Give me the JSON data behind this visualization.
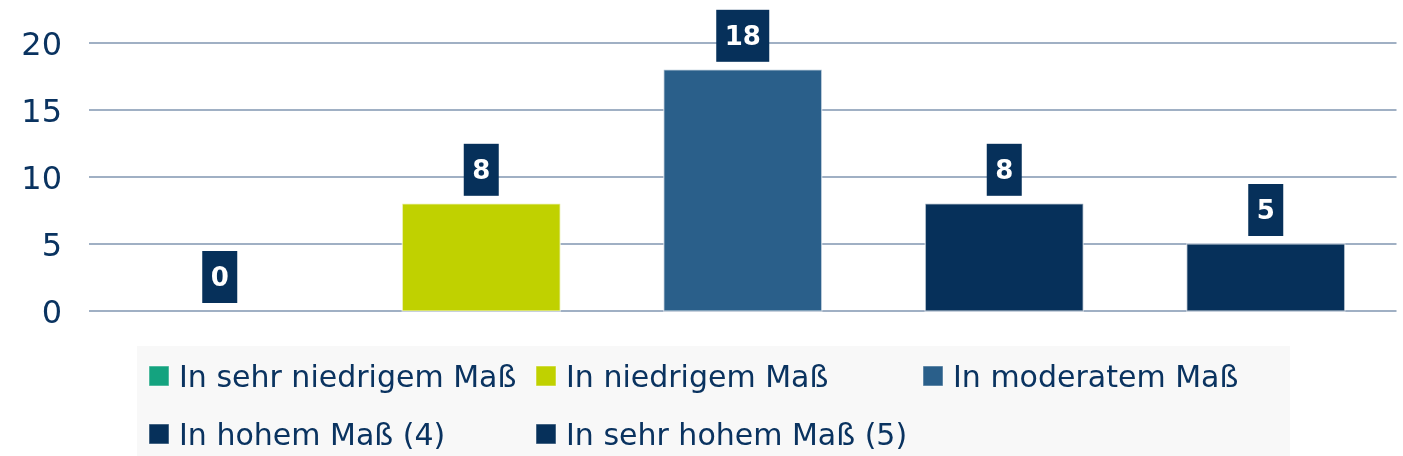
{
  "chart_data": {
    "type": "bar",
    "categories": [
      null,
      null,
      null,
      null,
      null
    ],
    "series": [
      {
        "name": "In sehr niedrigem Maß",
        "color": "#14a37f",
        "values": [
          0,
          null,
          null,
          null,
          null
        ]
      },
      {
        "name": "In niedrigem Maß",
        "color": "#c0d100",
        "values": [
          null,
          8,
          null,
          null,
          null
        ]
      },
      {
        "name": "In moderatem Maß",
        "color": "#2a5f8a",
        "values": [
          null,
          null,
          18,
          null,
          null
        ]
      },
      {
        "name": "In hohem Maß (4)",
        "color": "#06305a",
        "values": [
          null,
          null,
          null,
          8,
          null
        ]
      },
      {
        "name": "In sehr hohem Maß (5)",
        "color": "#06305a",
        "values": [
          null,
          null,
          null,
          null,
          5
        ]
      }
    ],
    "ylim": [
      0,
      20
    ],
    "yticks": [
      0,
      5,
      10,
      15,
      20
    ],
    "grid": "y",
    "data_labels": true,
    "legend": "bottom"
  }
}
